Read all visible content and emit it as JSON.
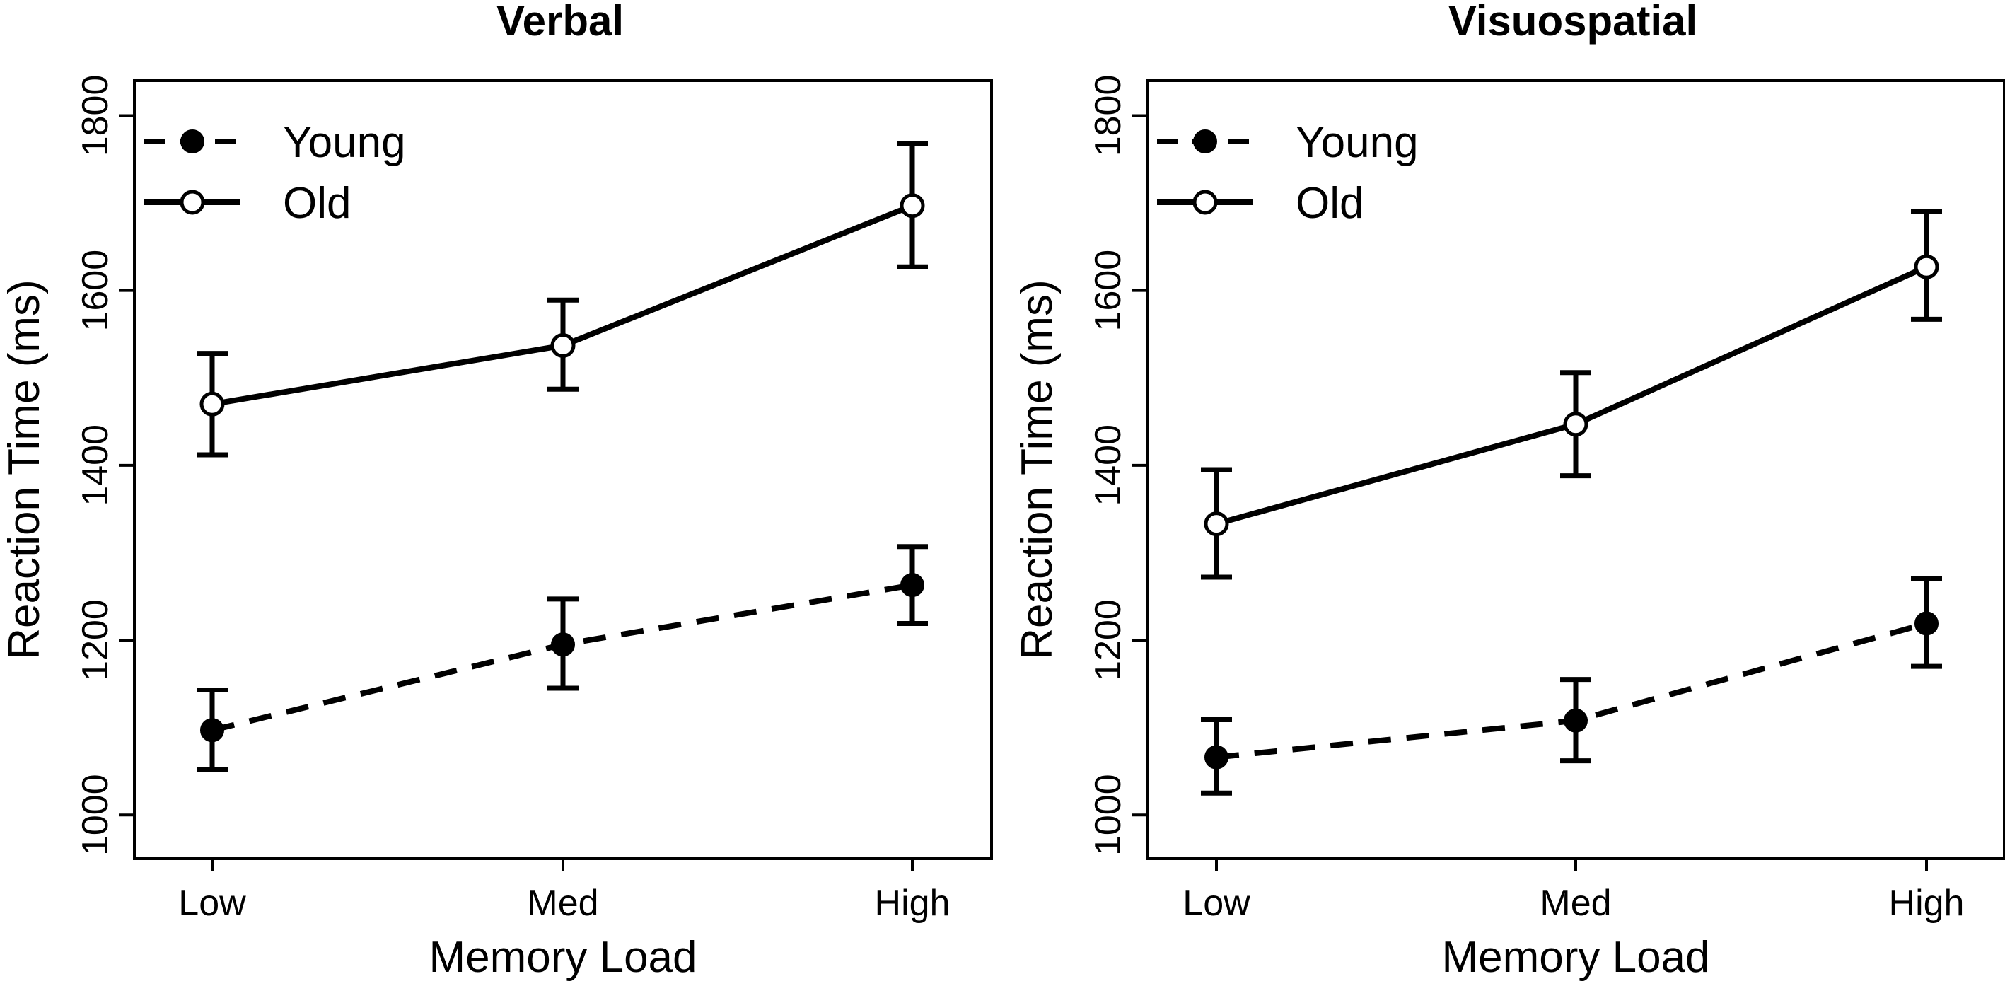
{
  "chart_data": [
    {
      "type": "line",
      "title": "Verbal",
      "xlabel": "Memory Load",
      "ylabel": "Reaction Time (ms)",
      "categories": [
        "Low",
        "Med",
        "High"
      ],
      "ylim": [
        950,
        1840
      ],
      "yticks": [
        1000,
        1200,
        1400,
        1600,
        1800
      ],
      "legend_position": "top-left",
      "series": [
        {
          "name": "Young",
          "line_style": "dashed",
          "marker": "filled-circle",
          "values": [
            1097,
            1195,
            1263
          ],
          "error_low": [
            1052,
            1145,
            1219
          ],
          "error_high": [
            1143,
            1247,
            1307
          ]
        },
        {
          "name": "Old",
          "line_style": "solid",
          "marker": "open-circle",
          "values": [
            1470,
            1537,
            1697
          ],
          "error_low": [
            1412,
            1487,
            1627
          ],
          "error_high": [
            1528,
            1589,
            1768
          ]
        }
      ]
    },
    {
      "type": "line",
      "title": "Visuospatial",
      "xlabel": "Memory Load",
      "ylabel": "Reaction Time (ms)",
      "categories": [
        "Low",
        "Med",
        "High"
      ],
      "ylim": [
        950,
        1840
      ],
      "yticks": [
        1000,
        1200,
        1400,
        1600,
        1800
      ],
      "legend_position": "top-left",
      "series": [
        {
          "name": "Young",
          "line_style": "dashed",
          "marker": "filled-circle",
          "values": [
            1066,
            1108,
            1219
          ],
          "error_low": [
            1025,
            1062,
            1170
          ],
          "error_high": [
            1109,
            1155,
            1270
          ]
        },
        {
          "name": "Old",
          "line_style": "solid",
          "marker": "open-circle",
          "values": [
            1333,
            1447,
            1627
          ],
          "error_low": [
            1272,
            1388,
            1567
          ],
          "error_high": [
            1395,
            1506,
            1690
          ]
        }
      ]
    }
  ]
}
